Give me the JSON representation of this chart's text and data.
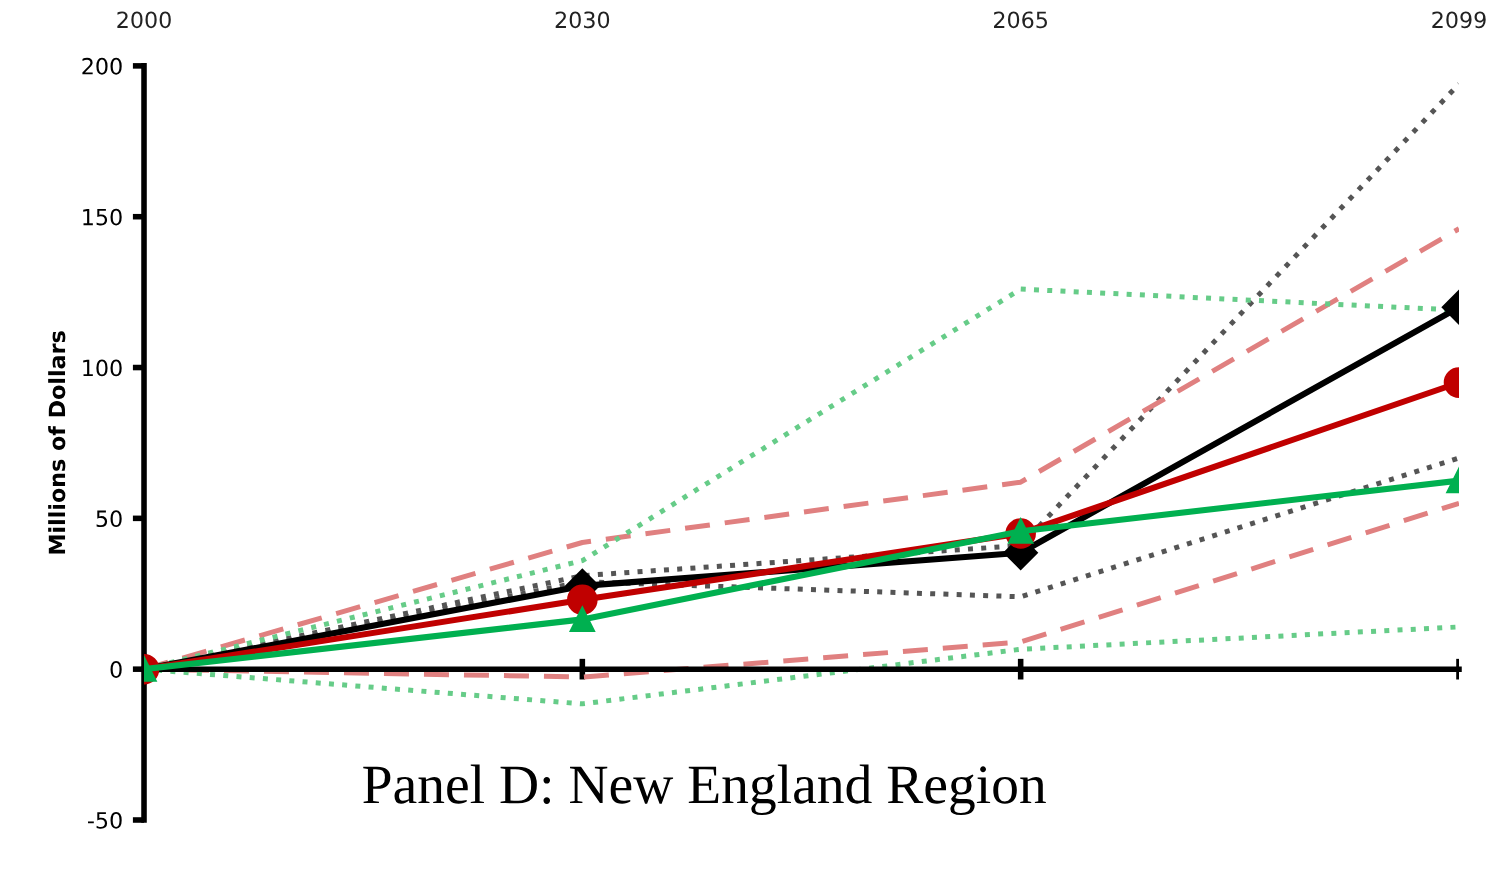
{
  "chart_data": {
    "type": "line",
    "title": "Panel D: New England Region",
    "ylabel": "Millions of Dollars",
    "categories": [
      "2000",
      "2030",
      "2065",
      "2099"
    ],
    "ylim": [
      -50,
      200
    ],
    "yticks": [
      -50,
      0,
      50,
      100,
      150,
      200
    ],
    "legend": false,
    "series": [
      {
        "color": "#555555",
        "line_style": "dotted",
        "marker": "none",
        "values": [
          0,
          31,
          41,
          194
        ]
      },
      {
        "color": "#555555",
        "line_style": "dotted",
        "marker": "none",
        "values": [
          0,
          29,
          24,
          70
        ]
      },
      {
        "color": "#e08080",
        "line_style": "dashed",
        "marker": "none",
        "values": [
          0,
          42,
          62,
          146
        ]
      },
      {
        "color": "#e08080",
        "line_style": "dashed",
        "marker": "none",
        "values": [
          0,
          -2.6,
          9,
          55
        ]
      },
      {
        "color": "#66cc88",
        "line_style": "dotted",
        "marker": "none",
        "values": [
          0,
          36,
          126,
          119
        ]
      },
      {
        "color": "#66cc88",
        "line_style": "dotted",
        "marker": "none",
        "values": [
          0,
          -11.5,
          6.6,
          14
        ]
      },
      {
        "color": "#000000",
        "line_style": "solid",
        "marker": "diamond",
        "values": [
          0,
          27.6,
          38.6,
          120
        ]
      },
      {
        "color": "#c00000",
        "line_style": "solid",
        "marker": "circle",
        "values": [
          0,
          23,
          45,
          95
        ]
      },
      {
        "color": "#00b050",
        "line_style": "solid",
        "marker": "triangle",
        "values": [
          0,
          16.5,
          45.7,
          62.5
        ]
      }
    ]
  }
}
